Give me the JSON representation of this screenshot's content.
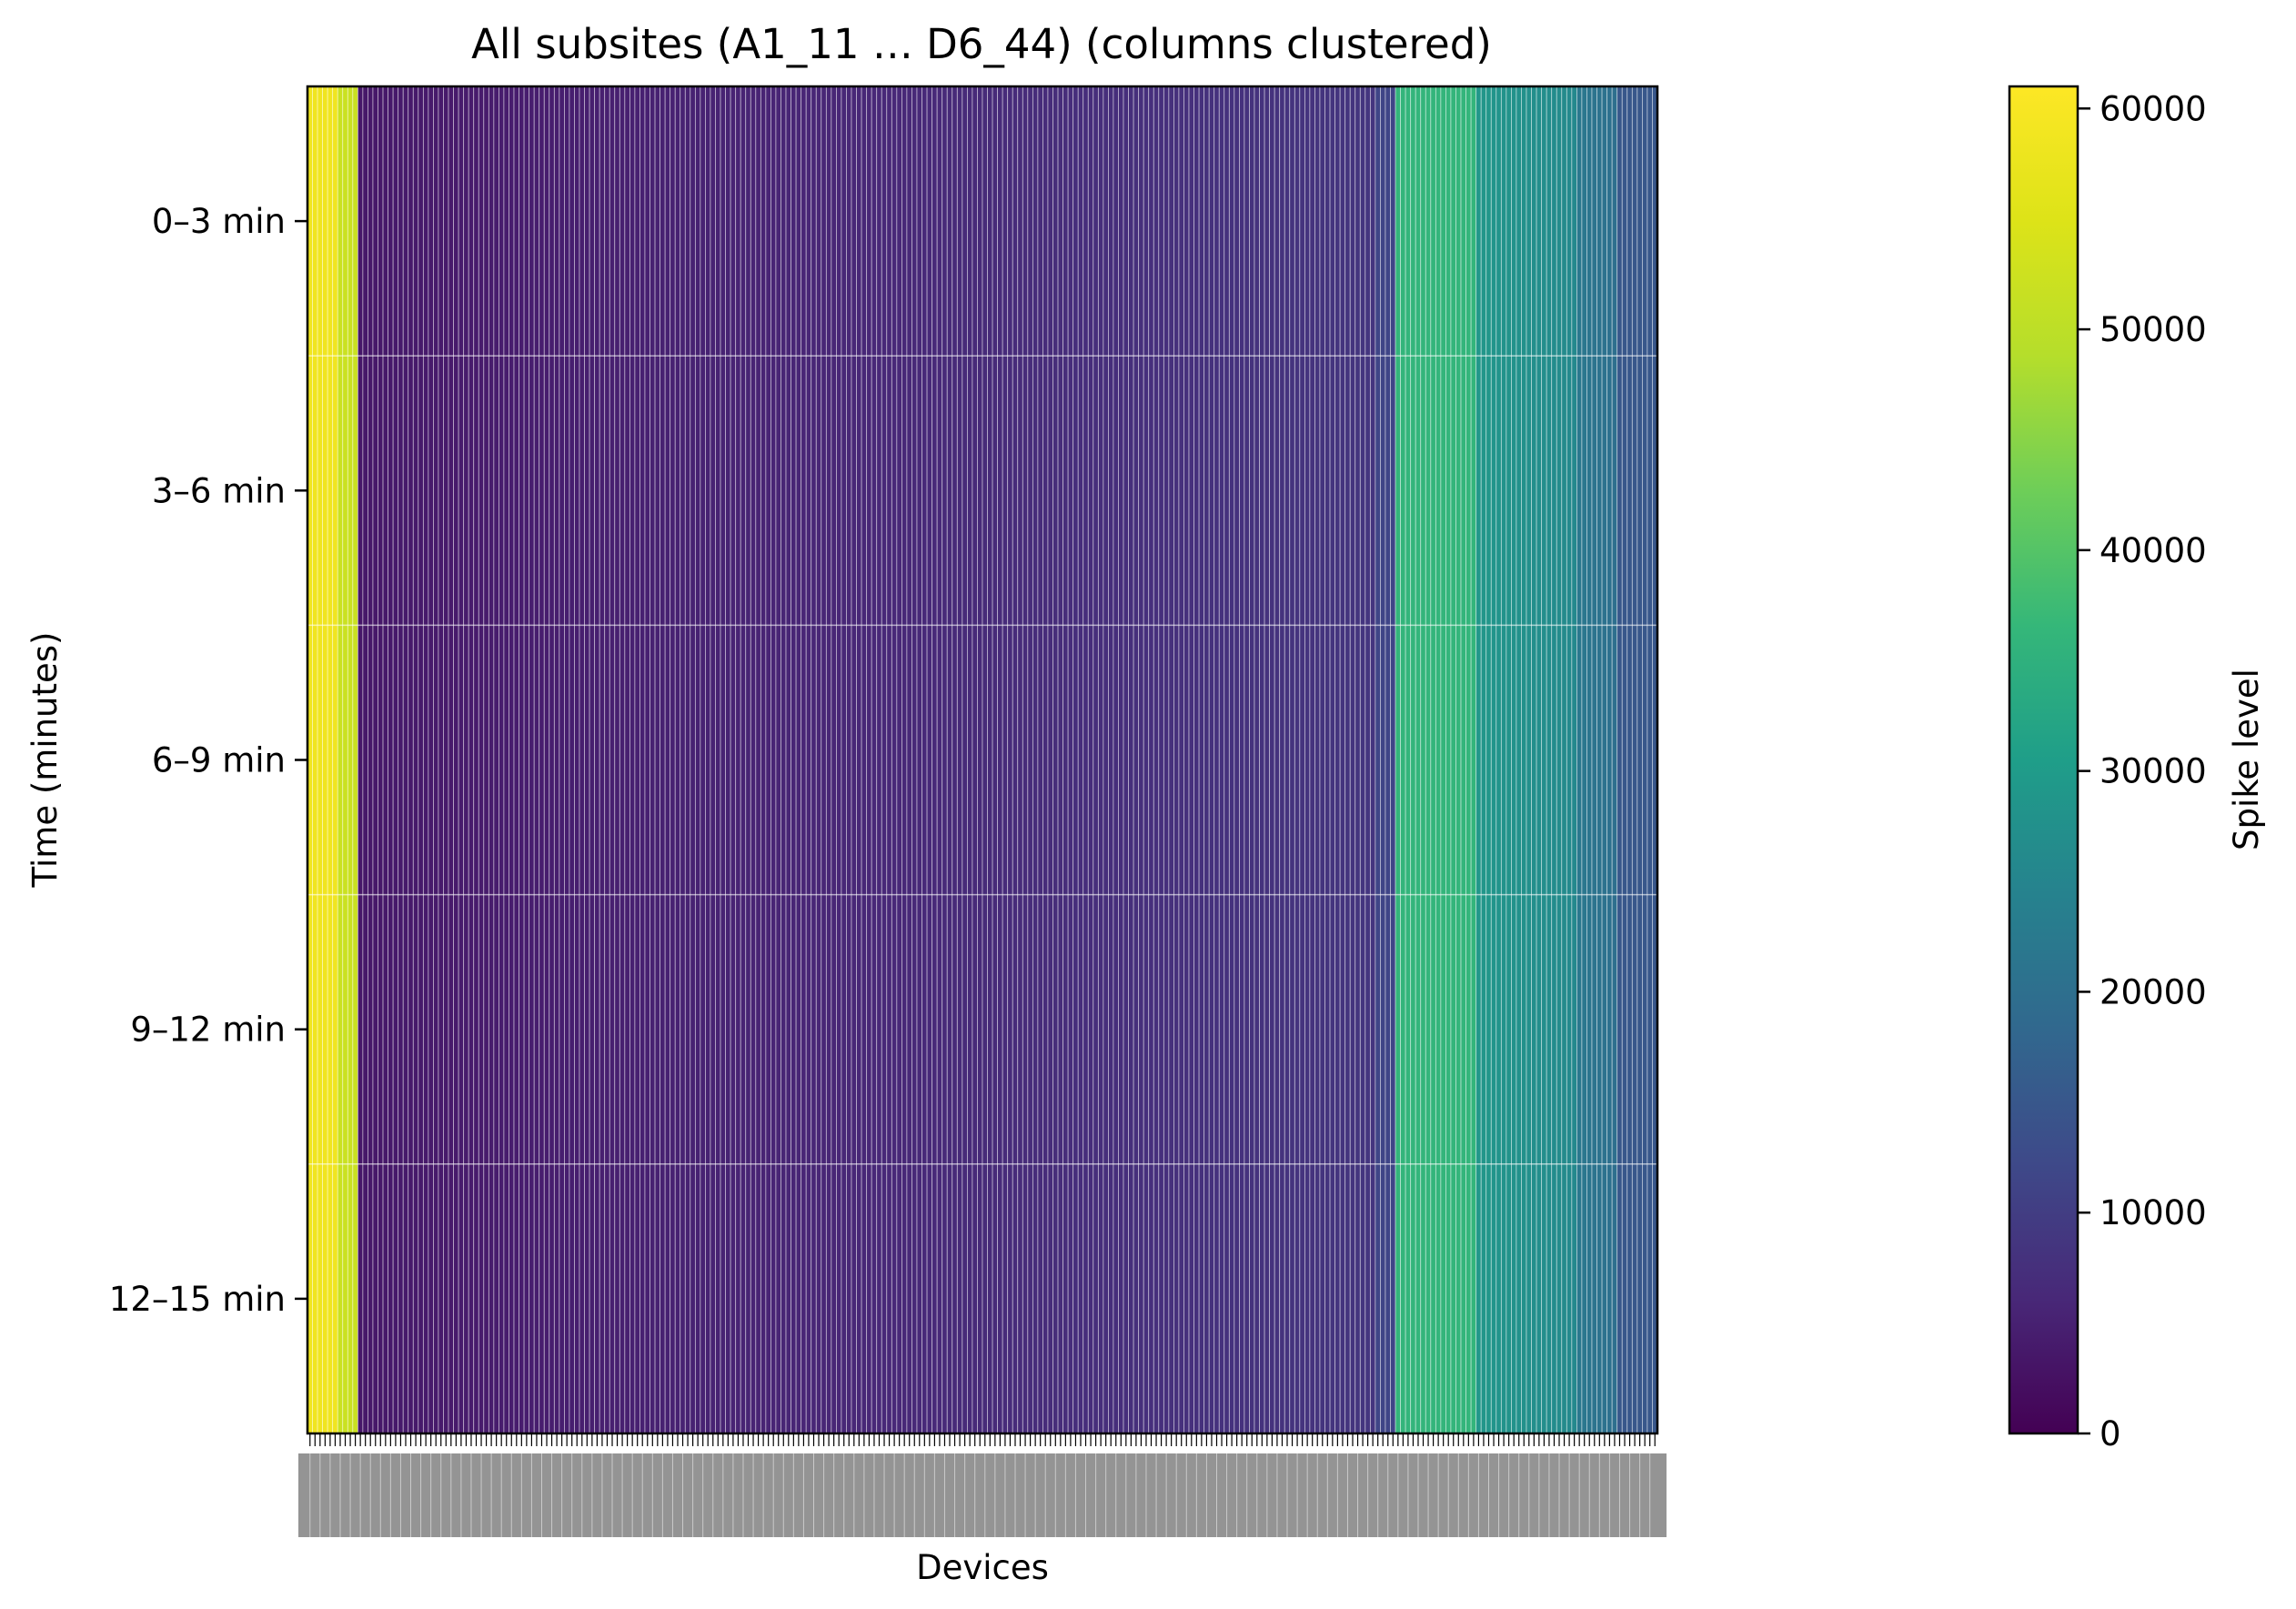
{
  "chart_data": {
    "type": "heatmap",
    "title": "All subsites (A1_11 … D6_44) (columns clustered)",
    "xlabel": "Devices",
    "ylabel": "Time (minutes)",
    "y_categories": [
      "0–3 min",
      "3–6 min",
      "6–9 min",
      "9–12 min",
      "12–15 min"
    ],
    "column_groups": [
      {
        "count": 6,
        "value": 58500
      },
      {
        "count": 4,
        "value": 52000
      },
      {
        "count": 202,
        "value_start": 3500,
        "value_end": 8500
      },
      {
        "count": 4,
        "value": 11500
      },
      {
        "count": 16,
        "value": 36000
      },
      {
        "count": 20,
        "value_start": 29000,
        "value_end": 26000
      },
      {
        "count": 8,
        "value_start": 22000,
        "value_end": 20000
      },
      {
        "count": 8,
        "value": 15000
      }
    ],
    "colorbar": {
      "label": "Spike level",
      "min": 0,
      "max": 61000,
      "ticks": [
        0,
        10000,
        20000,
        30000,
        40000,
        50000,
        60000
      ],
      "tick_labels": [
        "0",
        "10000",
        "20000",
        "30000",
        "40000",
        "50000",
        "60000"
      ],
      "colormap": "viridis"
    },
    "cell_grid_color": "#ffffff",
    "grid": false,
    "legend": "none"
  }
}
